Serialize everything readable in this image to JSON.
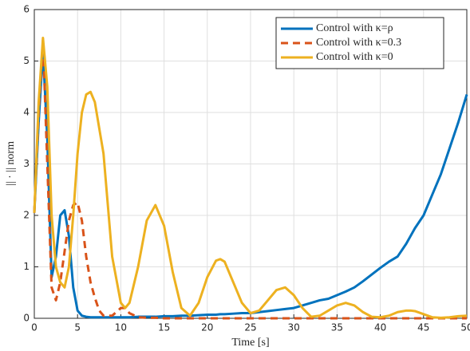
{
  "chart_data": {
    "type": "line",
    "xlabel": "Time [s]",
    "ylabel": "|| · || norm",
    "x": [
      0,
      0.5,
      1,
      1.5,
      2,
      2.5,
      3,
      3.5,
      4,
      4.5,
      5,
      5.5,
      6,
      6.5,
      7,
      7.5,
      8,
      9,
      10,
      10.5,
      11,
      12,
      13,
      14,
      15,
      16,
      17,
      18,
      19,
      20,
      21,
      21.5,
      22,
      23,
      24,
      25,
      26,
      27,
      28,
      29,
      30,
      31,
      32,
      33,
      34,
      35,
      36,
      37,
      38,
      39,
      40,
      41,
      42,
      43,
      43.5,
      44,
      45,
      46,
      47,
      48,
      49,
      50
    ],
    "series": [
      {
        "name": "Control with κ=ρ",
        "color": "#0072bd",
        "dash": false,
        "values": [
          2.05,
          3.8,
          5.2,
          3.5,
          0.8,
          1.2,
          2.0,
          2.1,
          1.6,
          0.6,
          0.15,
          0.05,
          0.03,
          0.02,
          0.02,
          0.02,
          0.02,
          0.02,
          0.02,
          0.02,
          0.02,
          0.03,
          0.03,
          0.03,
          0.04,
          0.04,
          0.05,
          0.05,
          0.06,
          0.07,
          0.07,
          0.08,
          0.08,
          0.09,
          0.1,
          0.1,
          0.12,
          0.14,
          0.16,
          0.18,
          0.2,
          0.25,
          0.3,
          0.35,
          0.38,
          0.45,
          0.52,
          0.6,
          0.72,
          0.85,
          0.98,
          1.1,
          1.2,
          1.45,
          1.6,
          1.75,
          2.0,
          2.4,
          2.8,
          3.3,
          3.8,
          4.35
        ]
      },
      {
        "name": "Control with κ=0.3",
        "color": "#d95319",
        "dash": true,
        "values": [
          2.05,
          4.0,
          5.4,
          3.0,
          0.6,
          0.35,
          0.7,
          1.3,
          1.9,
          2.2,
          2.25,
          1.9,
          1.2,
          0.7,
          0.4,
          0.15,
          0.05,
          0.05,
          0.2,
          0.2,
          0.1,
          0.02,
          0.01,
          0.01,
          0,
          0,
          0,
          0,
          0,
          0,
          0,
          0,
          0,
          0,
          0,
          0,
          0,
          0,
          0,
          0,
          0,
          0,
          0,
          0,
          0,
          0,
          0,
          0,
          0,
          0,
          0,
          0,
          0,
          0,
          0,
          0,
          0,
          0,
          0,
          0,
          0,
          0
        ]
      },
      {
        "name": "Control with κ=0",
        "color": "#edb120",
        "dash": false,
        "values": [
          2.05,
          4.2,
          5.45,
          4.5,
          2.0,
          1.0,
          0.7,
          0.6,
          1.0,
          2.0,
          3.2,
          4.0,
          4.35,
          4.4,
          4.2,
          3.7,
          3.2,
          1.2,
          0.3,
          0.2,
          0.3,
          1.0,
          1.9,
          2.2,
          1.8,
          0.9,
          0.2,
          0.05,
          0.3,
          0.8,
          1.12,
          1.15,
          1.1,
          0.7,
          0.3,
          0.1,
          0.15,
          0.35,
          0.55,
          0.6,
          0.45,
          0.2,
          0.03,
          0.05,
          0.15,
          0.25,
          0.3,
          0.25,
          0.12,
          0.03,
          0.02,
          0.05,
          0.12,
          0.15,
          0.15,
          0.14,
          0.08,
          0.02,
          0.01,
          0.02,
          0.04,
          0.05
        ]
      }
    ],
    "xlim": [
      0,
      50
    ],
    "ylim": [
      0,
      6
    ],
    "xticks": [
      0,
      5,
      10,
      15,
      20,
      25,
      30,
      35,
      40,
      45,
      50
    ],
    "yticks": [
      0,
      1,
      2,
      3,
      4,
      5,
      6
    ],
    "grid": true,
    "legend": "upper right"
  }
}
